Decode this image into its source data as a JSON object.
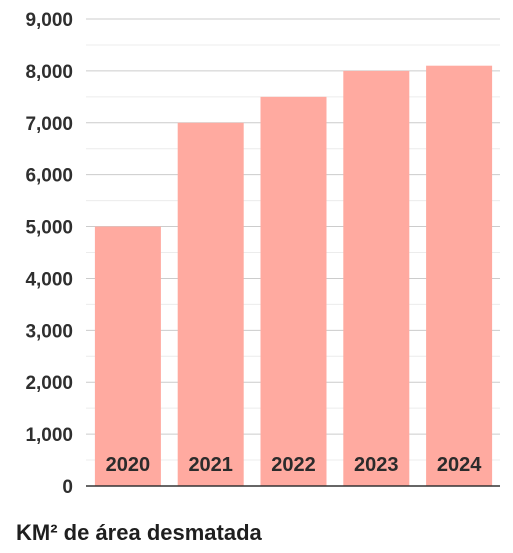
{
  "chart_data": {
    "type": "bar",
    "categories": [
      "2020",
      "2021",
      "2022",
      "2023",
      "2024"
    ],
    "values": [
      5000,
      7000,
      7500,
      8000,
      8100
    ],
    "title": "",
    "xlabel": "KM² de área desmatada",
    "ylabel": "",
    "ylim": [
      0,
      9000
    ],
    "yticks": [
      0,
      1000,
      2000,
      3000,
      4000,
      5000,
      6000,
      7000,
      8000,
      9000
    ],
    "ytick_labels": [
      "0",
      "1,000",
      "2,000",
      "3,000",
      "4,000",
      "5,000",
      "6,000",
      "7,000",
      "8,000",
      "9,000"
    ],
    "grid": true,
    "minor_grid": true,
    "category_labels_inside_bars": true
  },
  "colors": {
    "bar": "#ffaaa0",
    "major_grid": "#cccccc",
    "minor_grid": "#ececec",
    "baseline": "#333333",
    "text": "#2b2b2b"
  }
}
